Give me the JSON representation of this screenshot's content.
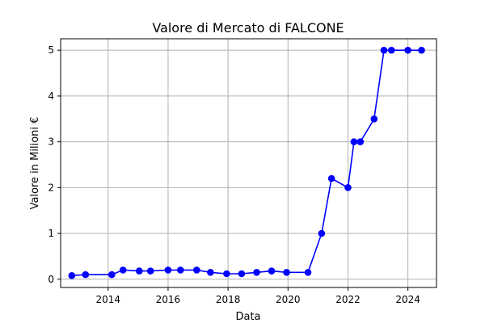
{
  "chart_data": {
    "type": "line",
    "title": "Valore di Mercato di FALCONE",
    "xlabel": "Data",
    "ylabel": "Valore in Milioni €",
    "x_ticks": [
      "2014",
      "2016",
      "2018",
      "2020",
      "2022",
      "2024"
    ],
    "y_ticks": [
      "0",
      "1",
      "2",
      "3",
      "4",
      "5"
    ],
    "xlim": [
      "2012-06-01",
      "2024-12-15"
    ],
    "ylim": [
      -0.18,
      5.25
    ],
    "grid": true,
    "line_color": "#0000ff",
    "marker_color": "#0000ff",
    "series": [
      {
        "x": [
          "2012-10-15",
          "2013-04-01",
          "2014-02-15",
          "2014-07-01",
          "2015-01-15",
          "2015-06-01",
          "2016-01-01",
          "2016-06-01",
          "2016-12-15",
          "2017-06-01",
          "2017-12-15",
          "2018-06-15",
          "2018-12-15",
          "2019-06-15",
          "2019-12-15",
          "2020-09-01",
          "2021-02-15",
          "2021-06-15",
          "2022-01-01",
          "2022-03-15",
          "2022-06-01",
          "2022-11-15",
          "2023-03-15",
          "2023-06-15",
          "2024-01-01",
          "2024-06-15"
        ],
        "y": [
          0.08,
          0.1,
          0.1,
          0.2,
          0.18,
          0.18,
          0.2,
          0.2,
          0.2,
          0.15,
          0.12,
          0.12,
          0.15,
          0.18,
          0.15,
          0.15,
          1.0,
          2.2,
          2.0,
          3.0,
          3.0,
          3.5,
          5.0,
          5.0,
          5.0,
          5.0
        ]
      }
    ]
  }
}
